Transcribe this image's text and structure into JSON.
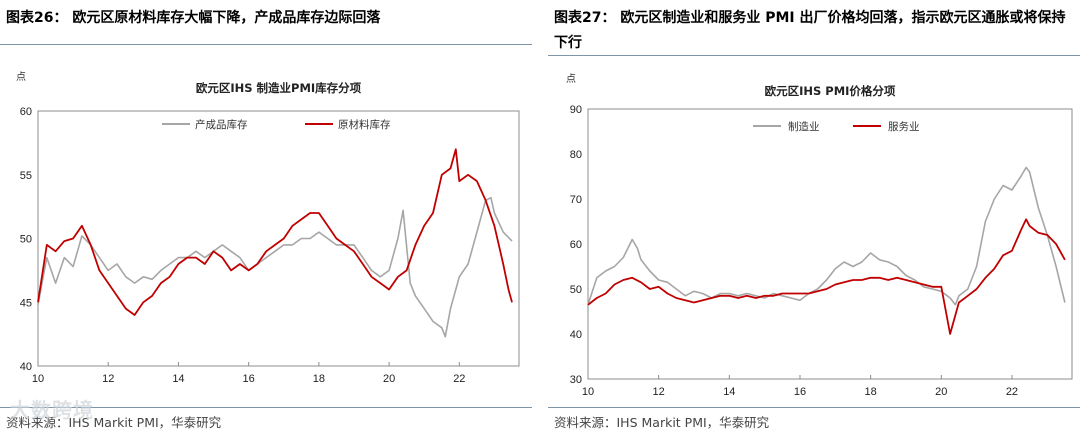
{
  "panels": [
    {
      "heading": "图表26：  欧元区原材料库存大幅下降，产成品库存边际回落",
      "source": "资料来源：IHS Markit PMI，华泰研究"
    },
    {
      "heading": "图表27：  欧元区制造业和服务业 PMI 出厂价格均回落，指示欧元区通胀或将保持下行",
      "source": "资料来源：IHS Markit PMI，华泰研究"
    }
  ],
  "watermark": "大数跨境",
  "colors": {
    "grey": "#a6a6a6",
    "red": "#c00000"
  },
  "chart_data": [
    {
      "type": "line",
      "title": "欧元区IHS 制造业PMI库存分项",
      "ylabel": "点",
      "xlim": [
        2010,
        2023.7
      ],
      "ylim": [
        40,
        60
      ],
      "yticks": [
        40,
        45,
        50,
        55,
        60
      ],
      "xticks": [
        10,
        12,
        14,
        16,
        18,
        20,
        22
      ],
      "legend_position": "top",
      "series": [
        {
          "name": "产成品库存",
          "color": "#a6a6a6",
          "points": [
            [
              2010.0,
              44.8
            ],
            [
              2010.25,
              48.5
            ],
            [
              2010.5,
              46.5
            ],
            [
              2010.75,
              48.5
            ],
            [
              2011.0,
              47.8
            ],
            [
              2011.25,
              50.2
            ],
            [
              2011.5,
              49.5
            ],
            [
              2011.75,
              48.5
            ],
            [
              2012.0,
              47.5
            ],
            [
              2012.25,
              48.0
            ],
            [
              2012.5,
              47.0
            ],
            [
              2012.75,
              46.5
            ],
            [
              2013.0,
              47.0
            ],
            [
              2013.25,
              46.8
            ],
            [
              2013.5,
              47.5
            ],
            [
              2013.75,
              48.0
            ],
            [
              2014.0,
              48.5
            ],
            [
              2014.25,
              48.5
            ],
            [
              2014.5,
              49.0
            ],
            [
              2014.75,
              48.5
            ],
            [
              2015.0,
              49.0
            ],
            [
              2015.25,
              49.5
            ],
            [
              2015.5,
              49.0
            ],
            [
              2015.75,
              48.5
            ],
            [
              2016.0,
              47.5
            ],
            [
              2016.25,
              48.0
            ],
            [
              2016.5,
              48.5
            ],
            [
              2016.75,
              49.0
            ],
            [
              2017.0,
              49.5
            ],
            [
              2017.25,
              49.5
            ],
            [
              2017.5,
              50.0
            ],
            [
              2017.75,
              50.0
            ],
            [
              2018.0,
              50.5
            ],
            [
              2018.25,
              50.0
            ],
            [
              2018.5,
              49.5
            ],
            [
              2018.75,
              49.5
            ],
            [
              2019.0,
              49.5
            ],
            [
              2019.25,
              48.5
            ],
            [
              2019.5,
              47.5
            ],
            [
              2019.75,
              47.0
            ],
            [
              2020.0,
              47.5
            ],
            [
              2020.25,
              50.0
            ],
            [
              2020.4,
              52.2
            ],
            [
              2020.6,
              46.5
            ],
            [
              2020.75,
              45.5
            ],
            [
              2021.0,
              44.5
            ],
            [
              2021.25,
              43.5
            ],
            [
              2021.5,
              43.0
            ],
            [
              2021.6,
              42.3
            ],
            [
              2021.75,
              44.5
            ],
            [
              2022.0,
              47.0
            ],
            [
              2022.25,
              48.0
            ],
            [
              2022.5,
              50.5
            ],
            [
              2022.75,
              53.0
            ],
            [
              2022.9,
              53.2
            ],
            [
              2023.0,
              52.0
            ],
            [
              2023.25,
              50.5
            ],
            [
              2023.5,
              49.8
            ]
          ]
        },
        {
          "name": "原材料库存",
          "color": "#c00000",
          "points": [
            [
              2010.0,
              45.0
            ],
            [
              2010.25,
              49.5
            ],
            [
              2010.5,
              49.0
            ],
            [
              2010.75,
              49.8
            ],
            [
              2011.0,
              50.0
            ],
            [
              2011.25,
              51.0
            ],
            [
              2011.5,
              49.5
            ],
            [
              2011.75,
              47.5
            ],
            [
              2012.0,
              46.5
            ],
            [
              2012.25,
              45.5
            ],
            [
              2012.5,
              44.5
            ],
            [
              2012.75,
              44.0
            ],
            [
              2013.0,
              45.0
            ],
            [
              2013.25,
              45.5
            ],
            [
              2013.5,
              46.5
            ],
            [
              2013.75,
              47.0
            ],
            [
              2014.0,
              48.0
            ],
            [
              2014.25,
              48.5
            ],
            [
              2014.5,
              48.5
            ],
            [
              2014.75,
              48.0
            ],
            [
              2015.0,
              49.0
            ],
            [
              2015.25,
              48.5
            ],
            [
              2015.5,
              47.5
            ],
            [
              2015.75,
              48.0
            ],
            [
              2016.0,
              47.5
            ],
            [
              2016.25,
              48.0
            ],
            [
              2016.5,
              49.0
            ],
            [
              2016.75,
              49.5
            ],
            [
              2017.0,
              50.0
            ],
            [
              2017.25,
              51.0
            ],
            [
              2017.5,
              51.5
            ],
            [
              2017.75,
              52.0
            ],
            [
              2018.0,
              52.0
            ],
            [
              2018.25,
              51.0
            ],
            [
              2018.5,
              50.0
            ],
            [
              2018.75,
              49.5
            ],
            [
              2019.0,
              49.0
            ],
            [
              2019.25,
              48.0
            ],
            [
              2019.5,
              47.0
            ],
            [
              2019.75,
              46.5
            ],
            [
              2020.0,
              46.0
            ],
            [
              2020.25,
              47.0
            ],
            [
              2020.5,
              47.5
            ],
            [
              2020.75,
              49.5
            ],
            [
              2021.0,
              51.0
            ],
            [
              2021.25,
              52.0
            ],
            [
              2021.5,
              55.0
            ],
            [
              2021.75,
              55.5
            ],
            [
              2021.9,
              57.0
            ],
            [
              2022.0,
              54.5
            ],
            [
              2022.25,
              55.0
            ],
            [
              2022.5,
              54.5
            ],
            [
              2022.75,
              53.0
            ],
            [
              2023.0,
              51.0
            ],
            [
              2023.25,
              48.0
            ],
            [
              2023.4,
              46.0
            ],
            [
              2023.5,
              45.0
            ]
          ]
        }
      ]
    },
    {
      "type": "line",
      "title": "欧元区IHS PMI价格分项",
      "ylabel": "点",
      "xlim": [
        2010,
        2023.7
      ],
      "ylim": [
        30,
        90
      ],
      "yticks": [
        30,
        40,
        50,
        60,
        70,
        80,
        90
      ],
      "xticks": [
        10,
        12,
        14,
        16,
        18,
        20,
        22
      ],
      "legend_position": "top",
      "series": [
        {
          "name": "制造业",
          "color": "#a6a6a6",
          "points": [
            [
              2010.0,
              46.5
            ],
            [
              2010.25,
              52.5
            ],
            [
              2010.5,
              54.0
            ],
            [
              2010.75,
              55.0
            ],
            [
              2011.0,
              57.0
            ],
            [
              2011.25,
              61.0
            ],
            [
              2011.4,
              59.0
            ],
            [
              2011.5,
              56.5
            ],
            [
              2011.75,
              54.0
            ],
            [
              2012.0,
              52.0
            ],
            [
              2012.25,
              51.5
            ],
            [
              2012.5,
              50.0
            ],
            [
              2012.75,
              48.5
            ],
            [
              2013.0,
              49.5
            ],
            [
              2013.25,
              49.0
            ],
            [
              2013.5,
              48.0
            ],
            [
              2013.75,
              49.0
            ],
            [
              2014.0,
              49.0
            ],
            [
              2014.25,
              48.5
            ],
            [
              2014.5,
              49.0
            ],
            [
              2014.75,
              48.5
            ],
            [
              2015.0,
              48.0
            ],
            [
              2015.25,
              49.0
            ],
            [
              2015.5,
              48.5
            ],
            [
              2015.75,
              48.0
            ],
            [
              2016.0,
              47.5
            ],
            [
              2016.25,
              49.0
            ],
            [
              2016.5,
              50.0
            ],
            [
              2016.75,
              52.0
            ],
            [
              2017.0,
              54.5
            ],
            [
              2017.25,
              56.0
            ],
            [
              2017.5,
              55.0
            ],
            [
              2017.75,
              56.0
            ],
            [
              2018.0,
              58.0
            ],
            [
              2018.25,
              56.5
            ],
            [
              2018.5,
              56.0
            ],
            [
              2018.75,
              55.0
            ],
            [
              2019.0,
              53.0
            ],
            [
              2019.25,
              52.0
            ],
            [
              2019.5,
              50.5
            ],
            [
              2019.75,
              50.0
            ],
            [
              2020.0,
              49.5
            ],
            [
              2020.25,
              48.0
            ],
            [
              2020.4,
              46.5
            ],
            [
              2020.5,
              48.5
            ],
            [
              2020.75,
              50.0
            ],
            [
              2021.0,
              55.0
            ],
            [
              2021.25,
              65.0
            ],
            [
              2021.5,
              70.0
            ],
            [
              2021.75,
              73.0
            ],
            [
              2022.0,
              72.0
            ],
            [
              2022.25,
              75.0
            ],
            [
              2022.4,
              77.0
            ],
            [
              2022.5,
              76.0
            ],
            [
              2022.75,
              68.0
            ],
            [
              2023.0,
              62.0
            ],
            [
              2023.25,
              55.0
            ],
            [
              2023.5,
              47.0
            ]
          ]
        },
        {
          "name": "服务业",
          "color": "#c00000",
          "points": [
            [
              2010.0,
              46.5
            ],
            [
              2010.25,
              48.0
            ],
            [
              2010.5,
              49.0
            ],
            [
              2010.75,
              51.0
            ],
            [
              2011.0,
              52.0
            ],
            [
              2011.25,
              52.5
            ],
            [
              2011.5,
              51.5
            ],
            [
              2011.75,
              50.0
            ],
            [
              2012.0,
              50.5
            ],
            [
              2012.25,
              49.0
            ],
            [
              2012.5,
              48.0
            ],
            [
              2012.75,
              47.5
            ],
            [
              2013.0,
              47.0
            ],
            [
              2013.25,
              47.5
            ],
            [
              2013.5,
              48.0
            ],
            [
              2013.75,
              48.5
            ],
            [
              2014.0,
              48.5
            ],
            [
              2014.25,
              48.0
            ],
            [
              2014.5,
              48.5
            ],
            [
              2014.75,
              48.0
            ],
            [
              2015.0,
              48.5
            ],
            [
              2015.25,
              48.5
            ],
            [
              2015.5,
              49.0
            ],
            [
              2015.75,
              49.0
            ],
            [
              2016.0,
              49.0
            ],
            [
              2016.25,
              49.0
            ],
            [
              2016.5,
              49.5
            ],
            [
              2016.75,
              50.0
            ],
            [
              2017.0,
              51.0
            ],
            [
              2017.25,
              51.5
            ],
            [
              2017.5,
              52.0
            ],
            [
              2017.75,
              52.0
            ],
            [
              2018.0,
              52.5
            ],
            [
              2018.25,
              52.5
            ],
            [
              2018.5,
              52.0
            ],
            [
              2018.75,
              52.5
            ],
            [
              2019.0,
              52.0
            ],
            [
              2019.25,
              51.5
            ],
            [
              2019.5,
              51.0
            ],
            [
              2019.75,
              50.5
            ],
            [
              2020.0,
              50.5
            ],
            [
              2020.25,
              40.0
            ],
            [
              2020.5,
              47.0
            ],
            [
              2020.75,
              48.5
            ],
            [
              2021.0,
              50.0
            ],
            [
              2021.25,
              52.5
            ],
            [
              2021.5,
              54.5
            ],
            [
              2021.75,
              57.5
            ],
            [
              2022.0,
              58.5
            ],
            [
              2022.25,
              63.0
            ],
            [
              2022.4,
              65.5
            ],
            [
              2022.5,
              64.0
            ],
            [
              2022.75,
              62.5
            ],
            [
              2023.0,
              62.0
            ],
            [
              2023.25,
              60.0
            ],
            [
              2023.5,
              56.5
            ]
          ]
        }
      ]
    }
  ]
}
